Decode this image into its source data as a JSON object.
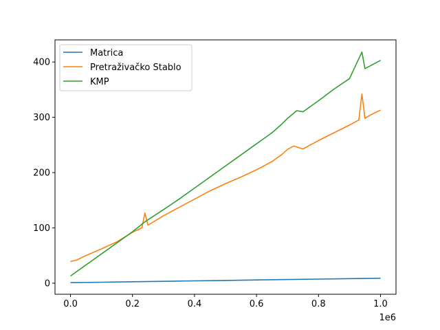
{
  "chart_data": {
    "type": "line",
    "title": "",
    "xlabel": "",
    "ylabel": "",
    "x_offset_text": "1e6",
    "xlim": [
      -0.05,
      1.05
    ],
    "ylim": [
      -20,
      440
    ],
    "x_ticks": [
      0.0,
      0.2,
      0.4,
      0.6,
      0.8,
      1.0
    ],
    "x_tick_labels": [
      "0.0",
      "0.2",
      "0.4",
      "0.6",
      "0.8",
      "1.0"
    ],
    "y_ticks": [
      0,
      100,
      200,
      300,
      400
    ],
    "y_tick_labels": [
      "0",
      "100",
      "200",
      "300",
      "400"
    ],
    "grid": false,
    "legend_position": "upper-left",
    "series": [
      {
        "name": "Matrica",
        "color": "#1f77b4",
        "x": [
          0.0,
          0.1,
          0.2,
          0.3,
          0.4,
          0.5,
          0.6,
          0.7,
          0.8,
          0.9,
          1.0
        ],
        "y": [
          1,
          1.8,
          2.6,
          3.4,
          4.2,
          5.0,
          5.8,
          6.6,
          7.4,
          8.2,
          9.0
        ]
      },
      {
        "name": "Pretraživačko Stablo",
        "color": "#ff7f0e",
        "x": [
          0.0,
          0.02,
          0.05,
          0.1,
          0.15,
          0.2,
          0.23,
          0.24,
          0.25,
          0.3,
          0.35,
          0.4,
          0.45,
          0.5,
          0.55,
          0.6,
          0.65,
          0.68,
          0.7,
          0.72,
          0.75,
          0.8,
          0.85,
          0.9,
          0.93,
          0.94,
          0.95,
          0.97,
          1.0
        ],
        "y": [
          39,
          42,
          50,
          62,
          75,
          92,
          100,
          127,
          105,
          122,
          137,
          152,
          167,
          180,
          192,
          205,
          220,
          232,
          242,
          248,
          243,
          258,
          272,
          286,
          295,
          342,
          298,
          305,
          313
        ]
      },
      {
        "name": "KMP",
        "color": "#2ca02c",
        "x": [
          0.0,
          0.1,
          0.2,
          0.24,
          0.3,
          0.35,
          0.4,
          0.45,
          0.5,
          0.55,
          0.6,
          0.65,
          0.68,
          0.7,
          0.73,
          0.75,
          0.8,
          0.85,
          0.9,
          0.94,
          0.95,
          1.0
        ],
        "y": [
          13,
          53,
          93,
          111,
          133,
          152,
          172,
          192,
          212,
          232,
          252,
          272,
          287,
          298,
          312,
          310,
          330,
          351,
          370,
          418,
          388,
          403
        ]
      }
    ]
  }
}
